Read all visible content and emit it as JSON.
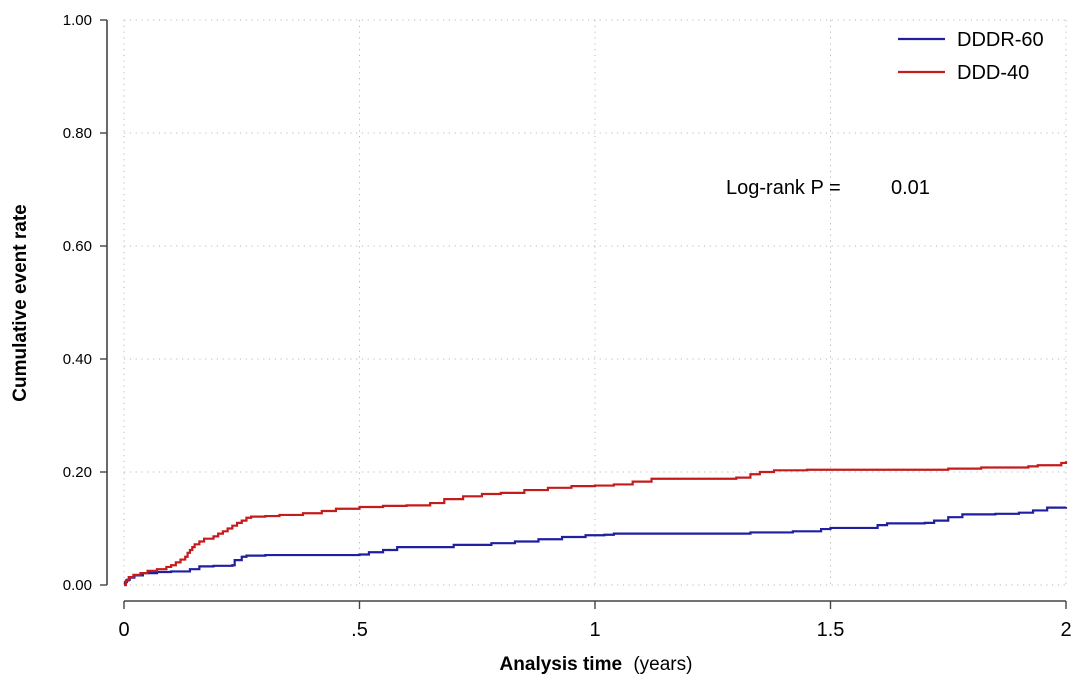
{
  "chart_data": {
    "type": "line",
    "step": true,
    "title": "",
    "xlabel_bold": "Analysis time",
    "xlabel_unit": "(years)",
    "ylabel": "Cumulative event rate",
    "xlim": [
      0,
      2
    ],
    "ylim": [
      0,
      1
    ],
    "x_ticks": [
      0,
      0.5,
      1,
      1.5,
      2
    ],
    "x_tick_labels": [
      "0",
      ".5",
      "1",
      "1.5",
      "2"
    ],
    "y_ticks": [
      0,
      0.2,
      0.4,
      0.6,
      0.8,
      1.0
    ],
    "y_tick_labels": [
      "0.00",
      "0.20",
      "0.40",
      "0.60",
      "0.80",
      "1.00"
    ],
    "grid": true,
    "legend_position": "top-right",
    "annotation": {
      "label": "Log-rank P =",
      "value": "0.01"
    },
    "series": [
      {
        "name": "DDDR-60",
        "color": "#1f1fa0",
        "points": [
          [
            0,
            0
          ],
          [
            0.002,
            0.005
          ],
          [
            0.006,
            0.009
          ],
          [
            0.012,
            0.013
          ],
          [
            0.022,
            0.017
          ],
          [
            0.04,
            0.021
          ],
          [
            0.07,
            0.023
          ],
          [
            0.1,
            0.024
          ],
          [
            0.14,
            0.028
          ],
          [
            0.16,
            0.033
          ],
          [
            0.19,
            0.034
          ],
          [
            0.23,
            0.035
          ],
          [
            0.235,
            0.044
          ],
          [
            0.25,
            0.05
          ],
          [
            0.26,
            0.052
          ],
          [
            0.3,
            0.053
          ],
          [
            0.4,
            0.053
          ],
          [
            0.5,
            0.054
          ],
          [
            0.52,
            0.058
          ],
          [
            0.55,
            0.062
          ],
          [
            0.58,
            0.067
          ],
          [
            0.7,
            0.071
          ],
          [
            0.78,
            0.074
          ],
          [
            0.83,
            0.077
          ],
          [
            0.88,
            0.081
          ],
          [
            0.93,
            0.085
          ],
          [
            0.98,
            0.088
          ],
          [
            1.02,
            0.089
          ],
          [
            1.04,
            0.091
          ],
          [
            1.1,
            0.091
          ],
          [
            1.2,
            0.091
          ],
          [
            1.3,
            0.091
          ],
          [
            1.33,
            0.093
          ],
          [
            1.42,
            0.095
          ],
          [
            1.48,
            0.099
          ],
          [
            1.5,
            0.101
          ],
          [
            1.55,
            0.101
          ],
          [
            1.6,
            0.106
          ],
          [
            1.62,
            0.109
          ],
          [
            1.7,
            0.11
          ],
          [
            1.72,
            0.114
          ],
          [
            1.75,
            0.12
          ],
          [
            1.78,
            0.125
          ],
          [
            1.85,
            0.126
          ],
          [
            1.9,
            0.128
          ],
          [
            1.93,
            0.132
          ],
          [
            1.96,
            0.137
          ],
          [
            2.0,
            0.138
          ]
        ]
      },
      {
        "name": "DDD-40",
        "color": "#c41c1c",
        "points": [
          [
            0,
            0
          ],
          [
            0.004,
            0.008
          ],
          [
            0.01,
            0.014
          ],
          [
            0.02,
            0.018
          ],
          [
            0.035,
            0.021
          ],
          [
            0.05,
            0.025
          ],
          [
            0.07,
            0.028
          ],
          [
            0.09,
            0.032
          ],
          [
            0.1,
            0.035
          ],
          [
            0.11,
            0.04
          ],
          [
            0.12,
            0.045
          ],
          [
            0.13,
            0.05
          ],
          [
            0.135,
            0.057
          ],
          [
            0.14,
            0.062
          ],
          [
            0.145,
            0.067
          ],
          [
            0.15,
            0.072
          ],
          [
            0.16,
            0.077
          ],
          [
            0.17,
            0.082
          ],
          [
            0.19,
            0.086
          ],
          [
            0.2,
            0.091
          ],
          [
            0.21,
            0.095
          ],
          [
            0.22,
            0.1
          ],
          [
            0.23,
            0.105
          ],
          [
            0.24,
            0.11
          ],
          [
            0.25,
            0.114
          ],
          [
            0.26,
            0.119
          ],
          [
            0.27,
            0.121
          ],
          [
            0.3,
            0.122
          ],
          [
            0.33,
            0.124
          ],
          [
            0.38,
            0.127
          ],
          [
            0.42,
            0.131
          ],
          [
            0.45,
            0.135
          ],
          [
            0.5,
            0.138
          ],
          [
            0.55,
            0.14
          ],
          [
            0.6,
            0.141
          ],
          [
            0.65,
            0.145
          ],
          [
            0.68,
            0.152
          ],
          [
            0.72,
            0.157
          ],
          [
            0.76,
            0.161
          ],
          [
            0.8,
            0.163
          ],
          [
            0.85,
            0.168
          ],
          [
            0.9,
            0.172
          ],
          [
            0.95,
            0.175
          ],
          [
            1.0,
            0.176
          ],
          [
            1.04,
            0.178
          ],
          [
            1.08,
            0.183
          ],
          [
            1.12,
            0.188
          ],
          [
            1.3,
            0.19
          ],
          [
            1.33,
            0.196
          ],
          [
            1.35,
            0.2
          ],
          [
            1.38,
            0.203
          ],
          [
            1.45,
            0.204
          ],
          [
            1.75,
            0.206
          ],
          [
            1.82,
            0.208
          ],
          [
            1.92,
            0.21
          ],
          [
            1.94,
            0.212
          ],
          [
            1.99,
            0.216
          ],
          [
            2.0,
            0.219
          ]
        ]
      }
    ]
  }
}
